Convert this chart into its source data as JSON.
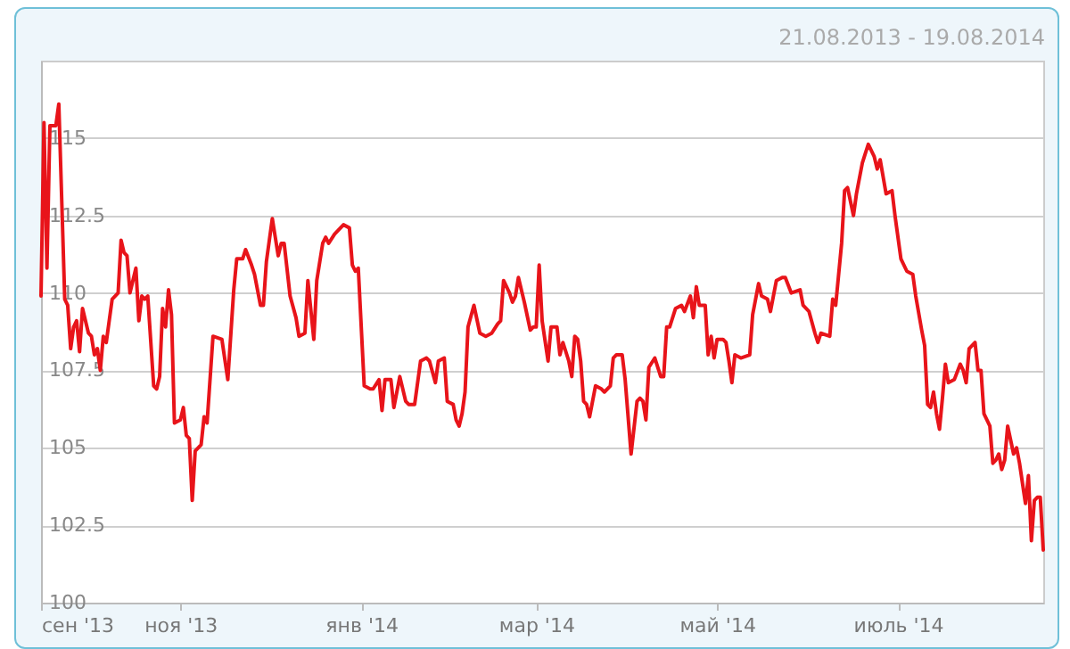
{
  "chart_data": {
    "type": "line",
    "title": "21.08.2013 - 19.08.2014",
    "x": [
      "2013-09-15",
      "2013-09-16",
      "2013-09-17",
      "2013-09-18",
      "2013-09-20",
      "2013-09-21",
      "2013-09-23",
      "2013-09-24",
      "2013-09-25",
      "2013-09-26",
      "2013-09-27",
      "2013-09-28",
      "2013-09-29",
      "2013-10-01",
      "2013-10-02",
      "2013-10-03",
      "2013-10-04",
      "2013-10-05",
      "2013-10-06",
      "2013-10-07",
      "2013-10-08",
      "2013-10-09",
      "2013-10-11",
      "2013-10-12",
      "2013-10-13",
      "2013-10-14",
      "2013-10-15",
      "2013-10-17",
      "2013-10-18",
      "2013-10-19",
      "2013-10-20",
      "2013-10-21",
      "2013-10-23",
      "2013-10-24",
      "2013-10-25",
      "2013-10-26",
      "2013-10-27",
      "2013-10-28",
      "2013-10-29",
      "2013-10-30",
      "2013-11-01",
      "2013-11-02",
      "2013-11-03",
      "2013-11-04",
      "2013-11-05",
      "2013-11-06",
      "2013-11-08",
      "2013-11-09",
      "2013-11-10",
      "2013-11-12",
      "2013-11-15",
      "2013-11-17",
      "2013-11-19",
      "2013-11-20",
      "2013-11-22",
      "2013-11-23",
      "2013-11-25",
      "2013-11-26",
      "2013-11-28",
      "2013-11-29",
      "2013-11-30",
      "2013-12-02",
      "2013-12-03",
      "2013-12-04",
      "2013-12-05",
      "2013-12-06",
      "2013-12-08",
      "2013-12-10",
      "2013-12-11",
      "2013-12-13",
      "2013-12-14",
      "2013-12-16",
      "2013-12-17",
      "2013-12-19",
      "2013-12-20",
      "2013-12-21",
      "2013-12-23",
      "2013-12-24",
      "2013-12-26",
      "2013-12-28",
      "2013-12-29",
      "2013-12-30",
      "2013-12-31",
      "2014-01-02",
      "2014-01-04",
      "2014-01-05",
      "2014-01-07",
      "2014-01-08",
      "2014-01-09",
      "2014-01-11",
      "2014-01-12",
      "2014-01-14",
      "2014-01-16",
      "2014-01-17",
      "2014-01-19",
      "2014-01-21",
      "2014-01-23",
      "2014-01-24",
      "2014-01-26",
      "2014-01-27",
      "2014-01-29",
      "2014-01-30",
      "2014-02-01",
      "2014-02-02",
      "2014-02-03",
      "2014-02-04",
      "2014-02-05",
      "2014-02-06",
      "2014-02-08",
      "2014-02-10",
      "2014-02-12",
      "2014-02-14",
      "2014-02-16",
      "2014-02-17",
      "2014-02-18",
      "2014-02-20",
      "2014-02-21",
      "2014-02-22",
      "2014-02-23",
      "2014-02-25",
      "2014-02-27",
      "2014-02-28",
      "2014-03-01",
      "2014-03-02",
      "2014-03-03",
      "2014-03-05",
      "2014-03-06",
      "2014-03-08",
      "2014-03-09",
      "2014-03-10",
      "2014-03-12",
      "2014-03-13",
      "2014-03-14",
      "2014-03-15",
      "2014-03-16",
      "2014-03-17",
      "2014-03-18",
      "2014-03-19",
      "2014-03-21",
      "2014-03-23",
      "2014-03-24",
      "2014-03-26",
      "2014-03-27",
      "2014-03-28",
      "2014-03-30",
      "2014-03-31",
      "2014-04-02",
      "2014-04-04",
      "2014-04-05",
      "2014-04-06",
      "2014-04-07",
      "2014-04-08",
      "2014-04-10",
      "2014-04-12",
      "2014-04-13",
      "2014-04-14",
      "2014-04-15",
      "2014-04-17",
      "2014-04-19",
      "2014-04-20",
      "2014-04-22",
      "2014-04-23",
      "2014-04-24",
      "2014-04-25",
      "2014-04-27",
      "2014-04-28",
      "2014-04-29",
      "2014-04-30",
      "2014-05-01",
      "2014-05-03",
      "2014-05-04",
      "2014-05-05",
      "2014-05-06",
      "2014-05-07",
      "2014-05-09",
      "2014-05-12",
      "2014-05-13",
      "2014-05-15",
      "2014-05-16",
      "2014-05-18",
      "2014-05-19",
      "2014-05-21",
      "2014-05-23",
      "2014-05-24",
      "2014-05-26",
      "2014-05-29",
      "2014-05-30",
      "2014-06-01",
      "2014-06-03",
      "2014-06-04",
      "2014-06-05",
      "2014-06-08",
      "2014-06-09",
      "2014-06-10",
      "2014-06-12",
      "2014-06-13",
      "2014-06-14",
      "2014-06-16",
      "2014-06-17",
      "2014-06-19",
      "2014-06-20",
      "2014-06-21",
      "2014-06-23",
      "2014-06-24",
      "2014-06-25",
      "2014-06-27",
      "2014-06-29",
      "2014-06-30",
      "2014-07-02",
      "2014-07-04",
      "2014-07-06",
      "2014-07-07",
      "2014-07-09",
      "2014-07-10",
      "2014-07-11",
      "2014-07-12",
      "2014-07-13",
      "2014-07-14",
      "2014-07-15",
      "2014-07-16",
      "2014-07-17",
      "2014-07-18",
      "2014-07-20",
      "2014-07-22",
      "2014-07-23",
      "2014-07-24",
      "2014-07-25",
      "2014-07-27",
      "2014-07-28",
      "2014-07-29",
      "2014-07-30",
      "2014-08-01",
      "2014-08-02",
      "2014-08-03",
      "2014-08-04",
      "2014-08-05",
      "2014-08-06",
      "2014-08-07",
      "2014-08-09",
      "2014-08-10",
      "2014-08-11",
      "2014-08-13",
      "2014-08-14",
      "2014-08-15",
      "2014-08-16",
      "2014-08-17",
      "2014-08-18",
      "2014-08-19"
    ],
    "series": [
      {
        "color": "#e8141a",
        "values": [
          109.9,
          115.5,
          110.8,
          115.4,
          115.4,
          116.1,
          109.8,
          109.6,
          108.2,
          108.9,
          109.1,
          108.1,
          109.5,
          108.7,
          108.6,
          108.0,
          108.2,
          107.5,
          108.6,
          108.4,
          109.1,
          109.8,
          110.0,
          111.7,
          111.3,
          111.2,
          110.0,
          110.8,
          109.1,
          109.9,
          109.8,
          109.9,
          107.0,
          106.9,
          107.3,
          109.5,
          108.9,
          110.1,
          109.3,
          105.8,
          105.9,
          106.3,
          105.4,
          105.3,
          103.3,
          104.9,
          105.1,
          106.0,
          105.8,
          108.6,
          108.5,
          107.2,
          110.1,
          111.1,
          111.1,
          111.4,
          110.9,
          110.6,
          109.6,
          109.6,
          111.0,
          112.4,
          111.8,
          111.2,
          111.6,
          111.6,
          109.9,
          109.2,
          108.6,
          108.7,
          110.4,
          108.5,
          110.4,
          111.6,
          111.8,
          111.6,
          111.9,
          112.0,
          112.2,
          112.1,
          110.9,
          110.7,
          110.8,
          107.0,
          106.9,
          106.9,
          107.2,
          106.2,
          107.2,
          107.2,
          106.3,
          107.3,
          106.5,
          106.4,
          106.4,
          107.8,
          107.9,
          107.8,
          107.1,
          107.8,
          107.9,
          106.5,
          106.4,
          105.9,
          105.7,
          106.1,
          106.8,
          108.9,
          109.6,
          108.7,
          108.6,
          108.7,
          109.0,
          109.1,
          110.4,
          110.0,
          109.7,
          109.9,
          110.5,
          109.7,
          108.8,
          108.9,
          108.9,
          110.9,
          109.1,
          107.8,
          108.9,
          108.9,
          108.0,
          108.4,
          107.8,
          107.3,
          108.6,
          108.5,
          107.8,
          106.5,
          106.4,
          106.0,
          107.0,
          106.9,
          106.8,
          107.0,
          107.9,
          108.0,
          108.0,
          107.2,
          104.8,
          106.5,
          106.6,
          106.5,
          105.9,
          107.6,
          107.9,
          107.3,
          107.3,
          108.9,
          108.9,
          109.5,
          109.6,
          109.4,
          109.9,
          109.2,
          110.2,
          109.6,
          109.6,
          108.0,
          108.6,
          107.9,
          108.5,
          108.5,
          108.4,
          107.8,
          107.1,
          108.0,
          107.9,
          108.0,
          109.3,
          110.3,
          109.9,
          109.8,
          109.4,
          110.4,
          110.5,
          110.5,
          110.0,
          110.1,
          109.6,
          109.4,
          108.7,
          108.4,
          108.7,
          108.6,
          109.8,
          109.6,
          111.6,
          113.3,
          113.4,
          112.5,
          113.2,
          114.2,
          114.5,
          114.8,
          114.4,
          114.0,
          114.3,
          113.2,
          113.3,
          112.5,
          111.1,
          110.7,
          110.6,
          109.9,
          108.8,
          108.3,
          106.4,
          106.3,
          106.8,
          106.1,
          105.6,
          106.6,
          107.7,
          107.1,
          107.2,
          107.7,
          107.5,
          107.1,
          108.2,
          108.4,
          107.5,
          107.5,
          106.1,
          105.7,
          104.5,
          104.6,
          104.8,
          104.3,
          104.6,
          105.7,
          104.8,
          105.0,
          104.5,
          103.2,
          104.1,
          102.0,
          103.3,
          103.4,
          103.4,
          101.7
        ]
      }
    ],
    "xlim": [
      "2013-09-15",
      "2014-08-19"
    ],
    "xticks": [
      {
        "value": "2013-09-15",
        "label": "сен '13"
      },
      {
        "value": "2013-11-01",
        "label": "ноя '13"
      },
      {
        "value": "2014-01-01",
        "label": "янв '14"
      },
      {
        "value": "2014-03-01",
        "label": "мар '14"
      },
      {
        "value": "2014-05-01",
        "label": "май '14"
      },
      {
        "value": "2014-07-01",
        "label": "июль '14"
      }
    ],
    "ylim": [
      100,
      117.5
    ],
    "yticks": [
      100,
      102.5,
      105,
      107.5,
      110,
      112.5,
      115
    ],
    "grid": "y",
    "line_style": "solid"
  }
}
